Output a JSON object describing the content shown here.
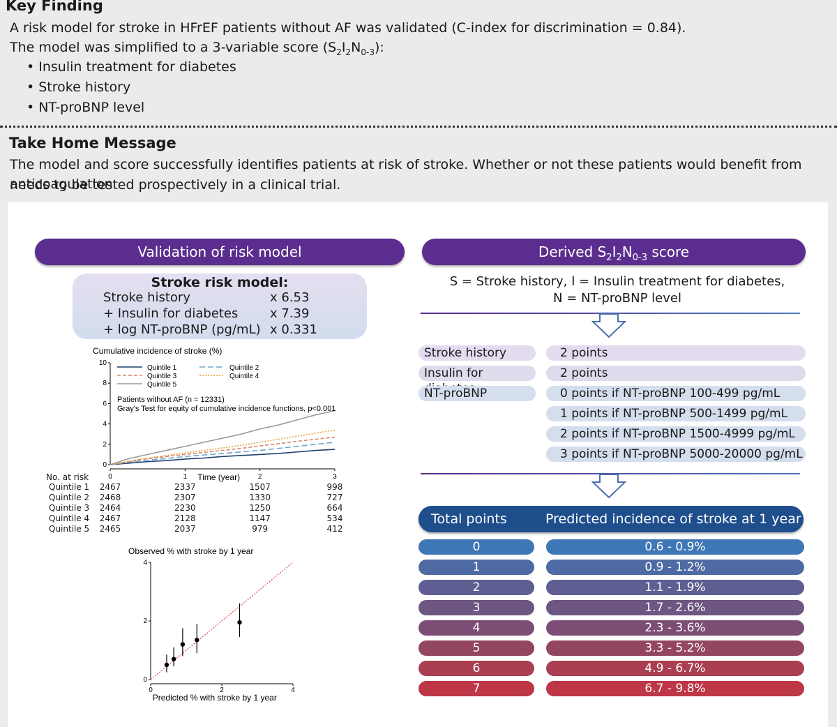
{
  "key_finding": {
    "heading": "Key Finding",
    "line1": "A risk model for stroke in HFrEF patients without AF was validated (C-index for discrimination = 0.84).",
    "line2_prefix": "The model was simplified to a 3-variable score (S",
    "line2_sub1": "2",
    "line2_i": "I",
    "line2_sub2": "2",
    "line2_n": "N",
    "line2_sub3": "0-3",
    "line2_suffix": "):",
    "bullets": [
      "Insulin treatment for diabetes",
      "Stroke history",
      "NT-proBNP level"
    ]
  },
  "take_home": {
    "heading": "Take Home Message",
    "line1": "The model and score successfully identifies patients at risk of stroke. Whether or not these patients would benefit from anticoagulation",
    "line2": "needs to be tested prospectively in a clinical trial."
  },
  "left_panel": {
    "header": "Validation of risk model",
    "model": {
      "title": "Stroke risk model:",
      "rows": [
        {
          "label": "Stroke history",
          "value": "x 6.53"
        },
        {
          "label": "+ Insulin for diabetes",
          "value": "x 7.39"
        },
        {
          "label": "+ log NT-proBNP (pg/mL)",
          "value": "x 0.331"
        }
      ]
    }
  },
  "right_panel": {
    "header_prefix": "Derived S",
    "header_sub1": "2",
    "header_i": "I",
    "header_sub2": "2",
    "header_n": "N",
    "header_sub3": "0-3",
    "header_suffix": " score",
    "formula_line1": "S = Stroke history, I = Insulin treatment for diabetes,",
    "formula_line2": "N = NT-proBNP level",
    "criteria": [
      {
        "label": "Stroke history",
        "points": "2 points"
      },
      {
        "label": "Insulin for diabetes",
        "points": "2 points"
      },
      {
        "label": "NT-proBNP",
        "points": "0 points if NT-proBNP 100-499 pg/mL"
      },
      {
        "label": "",
        "points": "1 points if NT-proBNP 500-1499 pg/mL"
      },
      {
        "label": "",
        "points": "2 points if NT-proBNP 1500-4999 pg/mL"
      },
      {
        "label": "",
        "points": "3 points if NT-proBNP 5000-20000 pg/mL"
      }
    ],
    "table_header_left": "Total points",
    "table_header_right": "Predicted incidence of stroke at 1 year",
    "rows": [
      {
        "points": "0",
        "incidence": "0.6 - 0.9%",
        "color": "#3e77b5"
      },
      {
        "points": "1",
        "incidence": "0.9 - 1.2%",
        "color": "#4e6aa2"
      },
      {
        "points": "2",
        "incidence": "1.1 - 1.9%",
        "color": "#5f5e92"
      },
      {
        "points": "3",
        "incidence": "1.7 - 2.6%",
        "color": "#6d5682"
      },
      {
        "points": "4",
        "incidence": "2.3 - 3.6%",
        "color": "#7d4e75"
      },
      {
        "points": "5",
        "incidence": "3.3 - 5.2%",
        "color": "#94465f"
      },
      {
        "points": "6",
        "incidence": "4.9 - 6.7%",
        "color": "#a93f50"
      },
      {
        "points": "7",
        "incidence": "6.7 - 9.8%",
        "color": "#bd3746"
      }
    ]
  },
  "chart_data": [
    {
      "type": "line",
      "title": "Cumulative incidence of stroke (%)",
      "xlabel": "Time (year)",
      "ylabel": "",
      "xlim": [
        0,
        3
      ],
      "ylim": [
        0,
        10
      ],
      "x_ticks": [
        "0",
        "1",
        "2",
        "3"
      ],
      "y_ticks": [
        "0",
        "2",
        "4",
        "6",
        "8",
        "10"
      ],
      "annotation1": "Patients without AF (n = 12331)",
      "annotation2": "Gray's Test for equity of cumulative incidence functions, p<0.001",
      "x": [
        0,
        0.25,
        0.5,
        0.75,
        1.0,
        1.25,
        1.5,
        1.75,
        2.0,
        2.25,
        2.5,
        2.75,
        3.0
      ],
      "series": [
        {
          "name": "Quintile 1",
          "color": "#1f3f73",
          "values": [
            0,
            0.15,
            0.3,
            0.4,
            0.55,
            0.65,
            0.8,
            0.9,
            1.0,
            1.1,
            1.25,
            1.4,
            1.5
          ]
        },
        {
          "name": "Quintile 2",
          "color": "#6aa8cf",
          "values": [
            0,
            0.25,
            0.45,
            0.6,
            0.8,
            0.95,
            1.1,
            1.25,
            1.4,
            1.6,
            1.8,
            2.0,
            2.2
          ]
        },
        {
          "name": "Quintile 3",
          "color": "#d9826a",
          "values": [
            0,
            0.3,
            0.6,
            0.8,
            1.0,
            1.2,
            1.4,
            1.6,
            1.85,
            2.05,
            2.3,
            2.5,
            2.7
          ]
        },
        {
          "name": "Quintile 4",
          "color": "#e8a23c",
          "values": [
            0,
            0.35,
            0.65,
            0.9,
            1.15,
            1.4,
            1.65,
            1.9,
            2.2,
            2.5,
            2.8,
            3.1,
            3.4
          ]
        },
        {
          "name": "Quintile 5",
          "color": "#9a9a9a",
          "values": [
            0,
            0.6,
            1.0,
            1.4,
            1.8,
            2.2,
            2.6,
            3.0,
            3.5,
            3.9,
            4.4,
            4.9,
            5.3
          ]
        }
      ],
      "risk_table": {
        "header": "No. at risk",
        "rows": [
          {
            "label": "Quintile 1",
            "values": [
              "2467",
              "2337",
              "1507",
              "998"
            ]
          },
          {
            "label": "Quintile 2",
            "values": [
              "2468",
              "2307",
              "1330",
              "727"
            ]
          },
          {
            "label": "Quintile 3",
            "values": [
              "2464",
              "2230",
              "1250",
              "664"
            ]
          },
          {
            "label": "Quintile 4",
            "values": [
              "2467",
              "2128",
              "1147",
              "534"
            ]
          },
          {
            "label": "Quintile 5",
            "values": [
              "2465",
              "2037",
              "979",
              "412"
            ]
          }
        ]
      }
    },
    {
      "type": "scatter",
      "title": "Observed % with stroke by 1 year",
      "xlabel": "Predicted % with stroke by 1 year",
      "ylabel": "",
      "xlim": [
        0,
        4
      ],
      "ylim": [
        0,
        4
      ],
      "x_ticks": [
        "0",
        "2",
        "4"
      ],
      "y_ticks": [
        "0",
        "2",
        "4"
      ],
      "points": [
        {
          "x": 0.45,
          "y": 0.5,
          "lo": 0.25,
          "hi": 0.85
        },
        {
          "x": 0.65,
          "y": 0.7,
          "lo": 0.45,
          "hi": 1.1
        },
        {
          "x": 0.9,
          "y": 1.2,
          "lo": 0.8,
          "hi": 1.75
        },
        {
          "x": 1.3,
          "y": 1.35,
          "lo": 0.9,
          "hi": 1.9
        },
        {
          "x": 2.5,
          "y": 1.95,
          "lo": 1.45,
          "hi": 2.6
        }
      ]
    }
  ]
}
